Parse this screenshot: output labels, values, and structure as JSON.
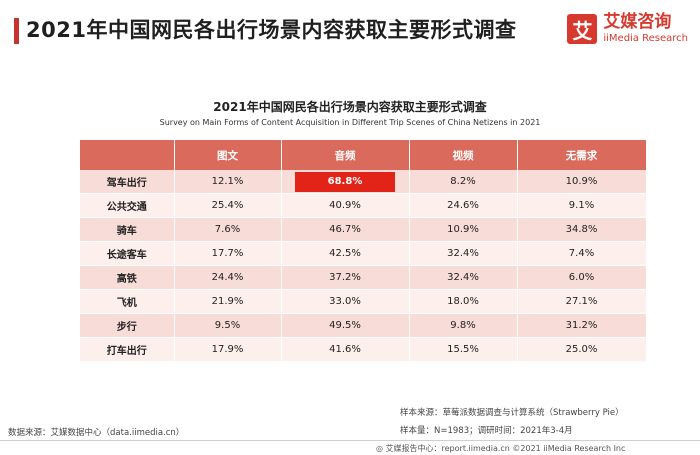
{
  "header": {
    "title": "2021年中国网民各出行场景内容获取主要形式调查",
    "logo_mark": "艾",
    "logo_cn": "艾媒咨询",
    "logo_en": "iiMedia Research"
  },
  "colors": {
    "accent": "#c8342b",
    "header_row": "#da6a5b",
    "row_dark": "#f7dcd7",
    "row_light": "#fcefec",
    "highlight": "#e22318"
  },
  "chart_data": {
    "type": "table",
    "title": "2021年中国网民各出行场景内容获取主要形式调查",
    "subtitle": "Survey on Main Forms of Content Acquisition in Different Trip Scenes of China Netizens in 2021",
    "columns": [
      "图文",
      "音频",
      "视频",
      "无需求"
    ],
    "rows": [
      {
        "label": "驾车出行",
        "values": [
          "12.1%",
          "68.8%",
          "8.2%",
          "10.9%"
        ]
      },
      {
        "label": "公共交通",
        "values": [
          "25.4%",
          "40.9%",
          "24.6%",
          "9.1%"
        ]
      },
      {
        "label": "骑车",
        "values": [
          "7.6%",
          "46.7%",
          "10.9%",
          "34.8%"
        ]
      },
      {
        "label": "长途客车",
        "values": [
          "17.7%",
          "42.5%",
          "32.4%",
          "7.4%"
        ]
      },
      {
        "label": "高铁",
        "values": [
          "24.4%",
          "37.2%",
          "32.4%",
          "6.0%"
        ]
      },
      {
        "label": "飞机",
        "values": [
          "21.9%",
          "33.0%",
          "18.0%",
          "27.1%"
        ]
      },
      {
        "label": "步行",
        "values": [
          "9.5%",
          "49.5%",
          "9.8%",
          "31.2%"
        ]
      },
      {
        "label": "打车出行",
        "values": [
          "17.9%",
          "41.6%",
          "15.5%",
          "25.0%"
        ]
      }
    ],
    "highlight": {
      "row": 0,
      "col": 1
    }
  },
  "footer": {
    "source": "数据来源：艾媒数据中心（data.iimedia.cn）",
    "sample_source": "样本来源：草莓派数据调查与计算系统（Strawberry Pie）",
    "sample_size": "样本量：N=1983；调研时间：2021年3-4月",
    "report": "◎ 艾媒报告中心：report.iimedia.cn ©2021  iiMedia Research  Inc"
  }
}
